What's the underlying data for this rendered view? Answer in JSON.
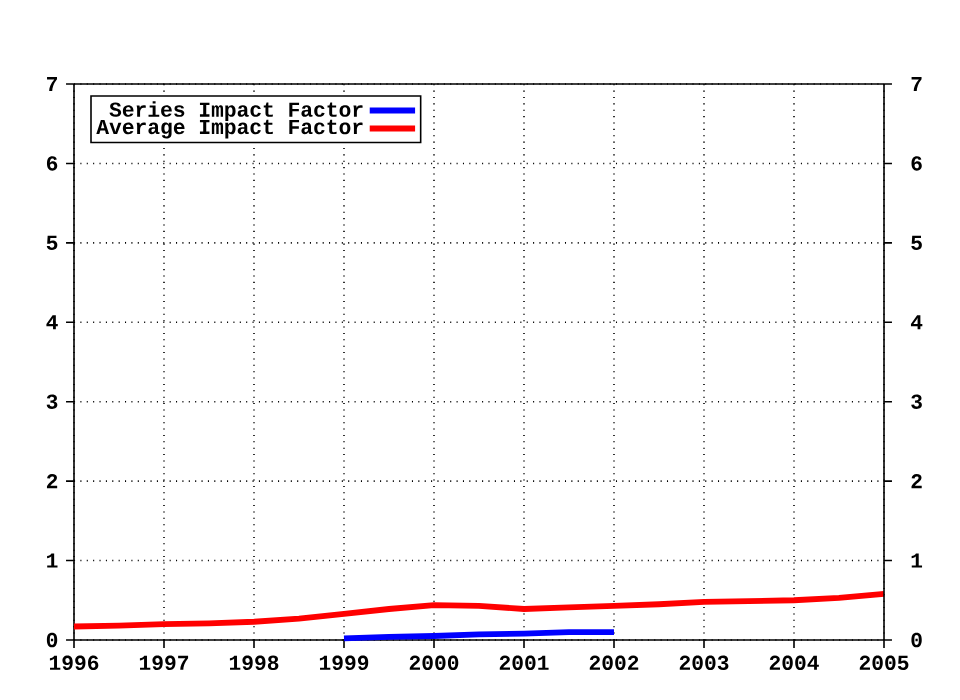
{
  "chart_data": {
    "type": "line",
    "series": [
      {
        "name": "Series Impact Factor",
        "color": "#0000ff",
        "x": [
          1999,
          1999.5,
          2000,
          2000.5,
          2001,
          2001.5,
          2002
        ],
        "values": [
          0.02,
          0.04,
          0.05,
          0.07,
          0.08,
          0.1,
          0.1
        ]
      },
      {
        "name": "Average Impact Factor",
        "color": "#ff0000",
        "x": [
          1996,
          1996.5,
          1997,
          1997.5,
          1998,
          1998.5,
          1999,
          1999.5,
          2000,
          2000.5,
          2001,
          2001.5,
          2002,
          2002.5,
          2003,
          2003.5,
          2004,
          2004.5,
          2005
        ],
        "values": [
          0.17,
          0.18,
          0.2,
          0.21,
          0.23,
          0.27,
          0.33,
          0.39,
          0.44,
          0.43,
          0.39,
          0.41,
          0.43,
          0.45,
          0.48,
          0.49,
          0.5,
          0.53,
          0.58
        ]
      }
    ],
    "xlim": [
      1996,
      2005
    ],
    "xticks": [
      1996,
      1997,
      1998,
      1999,
      2000,
      2001,
      2002,
      2003,
      2004,
      2005
    ],
    "ylim": [
      0,
      7
    ],
    "yticks": [
      0,
      1,
      2,
      3,
      4,
      5,
      6,
      7
    ],
    "y2lim": [
      0,
      7
    ],
    "y2ticks": [
      0,
      1,
      2,
      3,
      4,
      5,
      6,
      7
    ],
    "grid": true,
    "legend": "top left",
    "line_style": "solid"
  }
}
